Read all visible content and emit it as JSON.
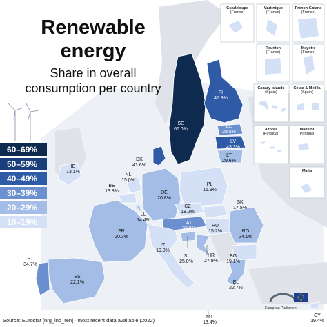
{
  "title_line1": "Renewable",
  "title_line2": "energy",
  "subtitle_line1": "Share in overall",
  "subtitle_line2": "consumption per country",
  "legend": [
    {
      "label": "60–69%",
      "color": "#0f2a4f"
    },
    {
      "label": "50–59%",
      "color": "#1b3f7a"
    },
    {
      "label": "40–49%",
      "color": "#2f5ba6"
    },
    {
      "label": "30–39%",
      "color": "#6b8fcf"
    },
    {
      "label": "20–29%",
      "color": "#a3bde6"
    },
    {
      "label": "10–19%",
      "color": "#d3e0f5"
    }
  ],
  "countries": [
    {
      "code": "SE",
      "value": "66.0%",
      "color": "#0f2a4f"
    },
    {
      "code": "FI",
      "value": "47.9%",
      "color": "#2f5ba6"
    },
    {
      "code": "EE",
      "value": "38.5%",
      "color": "#6b8fcf"
    },
    {
      "code": "LV",
      "value": "43.3%",
      "color": "#2f5ba6"
    },
    {
      "code": "LT",
      "value": "29.6%",
      "color": "#a3bde6"
    },
    {
      "code": "DK",
      "value": "41.6%",
      "color": "#2f5ba6"
    },
    {
      "code": "IE",
      "value": "13.1%",
      "color": "#d3e0f5"
    },
    {
      "code": "NL",
      "value": "15.0%",
      "color": "#d3e0f5"
    },
    {
      "code": "BE",
      "value": "13.8%",
      "color": "#d3e0f5"
    },
    {
      "code": "DE",
      "value": "20.8%",
      "color": "#a3bde6"
    },
    {
      "code": "PL",
      "value": "16.9%",
      "color": "#d3e0f5"
    },
    {
      "code": "LU",
      "value": "14.4%",
      "color": "#d3e0f5"
    },
    {
      "code": "CZ",
      "value": "18.2%",
      "color": "#d3e0f5"
    },
    {
      "code": "SK",
      "value": "17.5%",
      "color": "#d3e0f5"
    },
    {
      "code": "FR",
      "value": "20.3%",
      "color": "#a3bde6"
    },
    {
      "code": "AT",
      "value": "33.8%",
      "color": "#6b8fcf"
    },
    {
      "code": "HU",
      "value": "15.2%",
      "color": "#d3e0f5"
    },
    {
      "code": "RO",
      "value": "24.1%",
      "color": "#a3bde6"
    },
    {
      "code": "IT",
      "value": "19.0%",
      "color": "#d3e0f5"
    },
    {
      "code": "SI",
      "value": "25.0%",
      "color": "#a3bde6"
    },
    {
      "code": "HR",
      "value": "27.9%",
      "color": "#a3bde6"
    },
    {
      "code": "BG",
      "value": "19.1%",
      "color": "#d3e0f5"
    },
    {
      "code": "PT",
      "value": "34.7%",
      "color": "#6b8fcf"
    },
    {
      "code": "ES",
      "value": "22.1%",
      "color": "#a3bde6"
    },
    {
      "code": "EL",
      "value": "22.7%",
      "color": "#a3bde6"
    },
    {
      "code": "MT",
      "value": "13.4%",
      "color": "#d3e0f5"
    },
    {
      "code": "CY",
      "value": "19.4%",
      "color": "#d3e0f5"
    }
  ],
  "insets": [
    {
      "name": "Guadeloupe",
      "country": "(France)"
    },
    {
      "name": "Martinique",
      "country": "(France)"
    },
    {
      "name": "French Guiana",
      "country": "(France)"
    },
    {
      "name": "Reunion",
      "country": "(France)"
    },
    {
      "name": "Mayotte",
      "country": "(France)"
    },
    {
      "name": "Canary Islands",
      "country": "(Spain)"
    },
    {
      "name": "Ceuta & Melilla",
      "country": "(Spain)"
    },
    {
      "name": "Azores",
      "country": "(Portugal)"
    },
    {
      "name": "Madeira",
      "country": "(Portugal)"
    },
    {
      "name": "Malta",
      "country": ""
    }
  ],
  "source": "Source: Eurostat [nrg_ind_ren] · most recent data available (2022)",
  "publisher": "European Parliament",
  "colors": {
    "sea": "#e9edf3",
    "non_eu": "#e4e7ec",
    "border": "#ffffff"
  }
}
